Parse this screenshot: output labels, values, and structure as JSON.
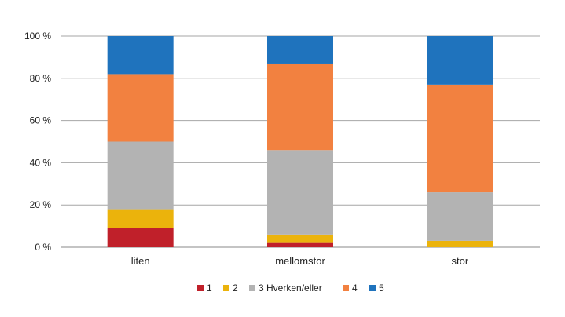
{
  "chart_data": {
    "type": "bar",
    "stacked": true,
    "normalized": true,
    "categories": [
      "liten",
      "mellomstor",
      "stor"
    ],
    "series": [
      {
        "name": "1",
        "color": "#c0202a",
        "values": [
          9,
          2,
          0
        ]
      },
      {
        "name": "2",
        "color": "#ebb30c",
        "values": [
          9,
          4,
          3
        ]
      },
      {
        "name": "3 Hverken/eller",
        "color": "#b3b3b3",
        "values": [
          32,
          40,
          23
        ]
      },
      {
        "name": "4",
        "color": "#f28140",
        "values": [
          32,
          41,
          51
        ]
      },
      {
        "name": "5",
        "color": "#1f73bd",
        "values": [
          18,
          13,
          23
        ]
      }
    ],
    "y_ticks": [
      "0 %",
      "20 %",
      "40 %",
      "60 %",
      "80 %",
      "100 %"
    ],
    "ylim": [
      0,
      100
    ],
    "grid": true,
    "legend_position": "bottom",
    "title": "",
    "xlabel": "",
    "ylabel": ""
  }
}
